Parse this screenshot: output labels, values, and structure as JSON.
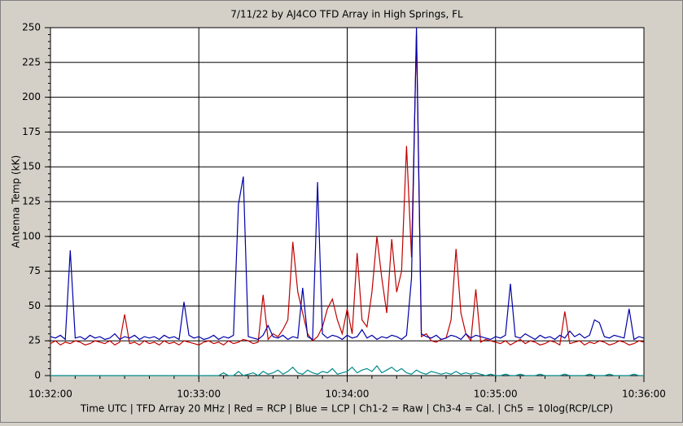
{
  "chart_data": {
    "type": "line",
    "title": "7/11/22  by  AJ4CO TFD Array  in  High Springs, FL",
    "ylabel": "Antenna Temp (kK)",
    "xlabel": "Time UTC | TFD Array 20 MHz | Red = RCP | Blue = LCP | Ch1-2 = Raw | Ch3-4 = Cal. | Ch5 = 10log(RCP/LCP)",
    "xlim": [
      "10:32:00",
      "10:36:00"
    ],
    "xticks": [
      "10:32:00",
      "10:33:00",
      "10:34:00",
      "10:35:00",
      "10:36:00"
    ],
    "ylim": [
      0,
      250
    ],
    "yticks": [
      0,
      25,
      50,
      75,
      100,
      125,
      150,
      175,
      200,
      225,
      250
    ],
    "grid": true,
    "x": [
      "10:32:00",
      "10:32:02",
      "10:32:04",
      "10:32:06",
      "10:32:08",
      "10:32:10",
      "10:32:12",
      "10:32:14",
      "10:32:16",
      "10:32:18",
      "10:32:20",
      "10:32:22",
      "10:32:24",
      "10:32:26",
      "10:32:28",
      "10:32:30",
      "10:32:32",
      "10:32:34",
      "10:32:36",
      "10:32:38",
      "10:32:40",
      "10:32:42",
      "10:32:44",
      "10:32:46",
      "10:32:48",
      "10:32:50",
      "10:32:52",
      "10:32:54",
      "10:32:56",
      "10:32:58",
      "10:33:00",
      "10:33:02",
      "10:33:04",
      "10:33:06",
      "10:33:08",
      "10:33:10",
      "10:33:12",
      "10:33:14",
      "10:33:16",
      "10:33:18",
      "10:33:20",
      "10:33:22",
      "10:33:24",
      "10:33:26",
      "10:33:28",
      "10:33:30",
      "10:33:32",
      "10:33:34",
      "10:33:36",
      "10:33:38",
      "10:33:40",
      "10:33:42",
      "10:33:44",
      "10:33:46",
      "10:33:48",
      "10:33:50",
      "10:33:52",
      "10:33:54",
      "10:33:56",
      "10:33:58",
      "10:34:00",
      "10:34:02",
      "10:34:04",
      "10:34:06",
      "10:34:08",
      "10:34:10",
      "10:34:12",
      "10:34:14",
      "10:34:16",
      "10:34:18",
      "10:34:20",
      "10:34:22",
      "10:34:24",
      "10:34:26",
      "10:34:28",
      "10:34:30",
      "10:34:32",
      "10:34:34",
      "10:34:36",
      "10:34:38",
      "10:34:40",
      "10:34:42",
      "10:34:44",
      "10:34:46",
      "10:34:48",
      "10:34:50",
      "10:34:52",
      "10:34:54",
      "10:34:56",
      "10:34:58",
      "10:35:00",
      "10:35:02",
      "10:35:04",
      "10:35:06",
      "10:35:08",
      "10:35:10",
      "10:35:12",
      "10:35:14",
      "10:35:16",
      "10:35:18",
      "10:35:20",
      "10:35:22",
      "10:35:24",
      "10:35:26",
      "10:35:28",
      "10:35:30",
      "10:35:32",
      "10:35:34",
      "10:35:36",
      "10:35:38",
      "10:35:40",
      "10:35:42",
      "10:35:44",
      "10:35:46",
      "10:35:48",
      "10:35:50",
      "10:35:52",
      "10:35:54",
      "10:35:56",
      "10:35:58",
      "10:36:00"
    ],
    "series": [
      {
        "name": "Ch5",
        "color": "#008b8b",
        "values": [
          0,
          0,
          0,
          0,
          0,
          0,
          0,
          0,
          0,
          0,
          0,
          0,
          0,
          0,
          0,
          0,
          0,
          0,
          0,
          0,
          0,
          0,
          0,
          0,
          0,
          0,
          0,
          0,
          0,
          0,
          0,
          0,
          0,
          0,
          0,
          2,
          0,
          0,
          3,
          0,
          1,
          2,
          0,
          3,
          1,
          2,
          4,
          1,
          3,
          6,
          2,
          1,
          4,
          2,
          1,
          3,
          2,
          5,
          1,
          2,
          3,
          6,
          2,
          4,
          5,
          3,
          7,
          2,
          4,
          6,
          3,
          5,
          2,
          1,
          4,
          2,
          1,
          3,
          2,
          1,
          2,
          1,
          3,
          1,
          2,
          1,
          2,
          1,
          0,
          1,
          0,
          0,
          1,
          0,
          0,
          1,
          0,
          0,
          0,
          1,
          0,
          0,
          0,
          0,
          1,
          0,
          0,
          0,
          0,
          1,
          0,
          0,
          0,
          1,
          0,
          0,
          0,
          0,
          1,
          0,
          0
        ]
      },
      {
        "name": "RCP",
        "color": "#c00000",
        "values": [
          23,
          25,
          22,
          24,
          23,
          25,
          24,
          22,
          23,
          25,
          24,
          23,
          25,
          22,
          24,
          44,
          23,
          24,
          22,
          25,
          23,
          24,
          22,
          25,
          23,
          24,
          22,
          25,
          24,
          23,
          22,
          24,
          25,
          23,
          24,
          22,
          25,
          23,
          24,
          26,
          25,
          23,
          24,
          58,
          26,
          30,
          28,
          33,
          40,
          96,
          60,
          45,
          30,
          25,
          28,
          35,
          48,
          55,
          40,
          30,
          48,
          30,
          88,
          40,
          35,
          60,
          100,
          70,
          45,
          98,
          60,
          75,
          165,
          85,
          245,
          28,
          30,
          25,
          24,
          26,
          27,
          40,
          91,
          45,
          30,
          25,
          62,
          24,
          26,
          25,
          24,
          23,
          25,
          22,
          24,
          26,
          23,
          25,
          24,
          22,
          23,
          25,
          24,
          22,
          46,
          23,
          24,
          25,
          22,
          24,
          23,
          25,
          24,
          22,
          23,
          25,
          24,
          22,
          23,
          25,
          24
        ]
      },
      {
        "name": "LCP",
        "color": "#0000a8",
        "values": [
          28,
          27,
          29,
          26,
          90,
          27,
          28,
          26,
          29,
          27,
          28,
          26,
          27,
          30,
          26,
          28,
          27,
          29,
          26,
          28,
          27,
          28,
          26,
          29,
          27,
          28,
          26,
          53,
          29,
          27,
          28,
          26,
          27,
          29,
          26,
          28,
          27,
          29,
          123,
          143,
          28,
          27,
          26,
          29,
          36,
          28,
          27,
          29,
          26,
          28,
          27,
          63,
          28,
          26,
          139,
          30,
          27,
          29,
          28,
          26,
          29,
          27,
          28,
          33,
          27,
          29,
          26,
          28,
          27,
          29,
          28,
          26,
          29,
          70,
          250,
          30,
          28,
          27,
          29,
          26,
          27,
          29,
          28,
          26,
          30,
          27,
          29,
          28,
          27,
          26,
          28,
          27,
          29,
          66,
          28,
          27,
          30,
          28,
          26,
          29,
          27,
          28,
          26,
          29,
          27,
          32,
          28,
          30,
          27,
          29,
          40,
          38,
          28,
          27,
          29,
          28,
          27,
          48,
          26,
          28,
          27
        ]
      }
    ]
  }
}
